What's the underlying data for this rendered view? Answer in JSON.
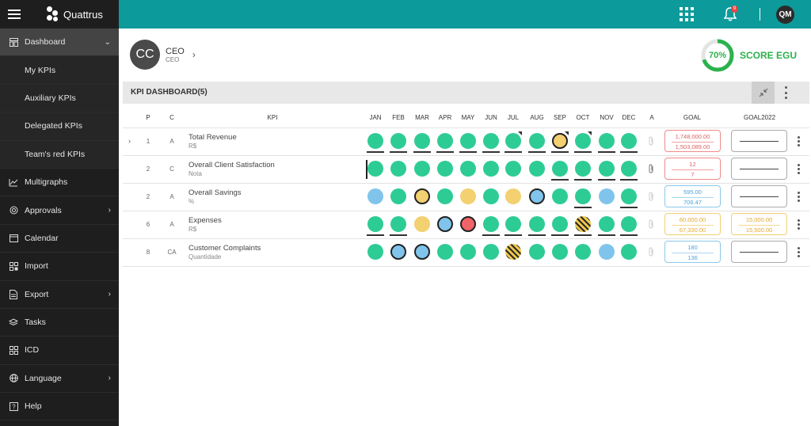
{
  "app": {
    "logo_text": "Quattrus"
  },
  "sidebar": {
    "items": [
      {
        "label": "Dashboard",
        "icon": "dashboard-icon",
        "active": true,
        "chevron": "⌄",
        "sub": false
      },
      {
        "label": "My KPIs",
        "sub": true
      },
      {
        "label": "Auxiliary KPIs",
        "sub": true
      },
      {
        "label": "Delegated KPIs",
        "sub": true
      },
      {
        "label": "Team's red KPIs",
        "sub": true
      },
      {
        "label": "Multigraphs",
        "icon": "chart-icon",
        "sub": false
      },
      {
        "label": "Approvals",
        "icon": "target-icon",
        "chevron": "›",
        "sub": false
      },
      {
        "label": "Calendar",
        "icon": "calendar-icon",
        "sub": false
      },
      {
        "label": "Import",
        "icon": "import-icon",
        "sub": false
      },
      {
        "label": "Export",
        "icon": "document-icon",
        "chevron": "›",
        "sub": false
      },
      {
        "label": "Tasks",
        "icon": "layers-icon",
        "sub": false
      },
      {
        "label": "ICD",
        "icon": "grid-icon",
        "sub": false
      },
      {
        "label": "Language",
        "icon": "globe-icon",
        "chevron": "›",
        "sub": false
      },
      {
        "label": "Help",
        "icon": "help-icon",
        "sub": false
      }
    ]
  },
  "topbar": {
    "notification_count": "9",
    "user_initials": "QM",
    "color": "#0d9a9a"
  },
  "profile": {
    "initials": "CC",
    "title": "CEO",
    "subtitle": "CEO"
  },
  "score": {
    "value": "70%",
    "fraction": 0.7,
    "label": "SCORE EGU"
  },
  "dashboard": {
    "title": "KPI DASHBOARD(5)"
  },
  "table": {
    "headers": {
      "p": "P",
      "c": "C",
      "kpi": "KPI",
      "a": "A",
      "goal": "GOAL",
      "goal2022": "GOAL2022"
    },
    "months": [
      "JAN",
      "FEB",
      "MAR",
      "APR",
      "MAY",
      "JUN",
      "JUL",
      "AUG",
      "SEP",
      "OCT",
      "NOV",
      "DEC"
    ],
    "rows": [
      {
        "p": "1",
        "c": "A",
        "name": "Total Revenue",
        "unit": "R$",
        "expandable": true,
        "status": [
          "green",
          "green",
          "green",
          "green",
          "green",
          "green",
          "green",
          "green",
          "yellow",
          "green",
          "green",
          "green"
        ],
        "ring": [
          false,
          false,
          false,
          false,
          false,
          false,
          false,
          false,
          true,
          false,
          false,
          false
        ],
        "underline": [
          true,
          true,
          true,
          true,
          true,
          true,
          true,
          true,
          true,
          true,
          true,
          true
        ],
        "corner": [
          false,
          false,
          false,
          false,
          false,
          false,
          true,
          false,
          true,
          true,
          false,
          false
        ],
        "goal": {
          "v1": "1,748,000.00",
          "v2": "1,503,089.00",
          "color": "red"
        },
        "goal2022": {
          "v1": "",
          "v2": "",
          "color": "grey"
        }
      },
      {
        "p": "2",
        "c": "C",
        "name": "Overall Client Satisfaction",
        "unit": "Nota",
        "expandable": false,
        "status": [
          "green",
          "green",
          "green",
          "green",
          "green",
          "green",
          "green",
          "green",
          "green",
          "green",
          "green",
          "green"
        ],
        "ring": [
          false,
          false,
          false,
          false,
          false,
          false,
          false,
          false,
          false,
          false,
          false,
          false
        ],
        "underline": [
          false,
          false,
          false,
          false,
          false,
          false,
          false,
          false,
          true,
          true,
          true,
          true
        ],
        "corner": [
          false,
          false,
          false,
          false,
          false,
          false,
          false,
          false,
          false,
          false,
          false,
          false
        ],
        "attachment": true,
        "goal": {
          "v1": "12",
          "v2": "7",
          "color": "red"
        },
        "goal2022": {
          "v1": "",
          "v2": "",
          "color": "grey"
        }
      },
      {
        "p": "2",
        "c": "A",
        "name": "Overall Savings",
        "unit": "%",
        "expandable": false,
        "status": [
          "blue",
          "green",
          "yellow",
          "green",
          "yellow",
          "green",
          "yellow",
          "blue",
          "green",
          "green",
          "blue",
          "green"
        ],
        "ring": [
          false,
          false,
          true,
          false,
          false,
          false,
          false,
          true,
          false,
          false,
          false,
          false
        ],
        "underline": [
          false,
          false,
          false,
          false,
          false,
          false,
          false,
          false,
          false,
          true,
          false,
          true
        ],
        "corner": [
          false,
          false,
          false,
          false,
          false,
          false,
          false,
          false,
          false,
          false,
          false,
          false
        ],
        "goal": {
          "v1": "595.00",
          "v2": "706.47",
          "color": "blue"
        },
        "goal2022": {
          "v1": "",
          "v2": "",
          "color": "grey"
        }
      },
      {
        "p": "6",
        "c": "A",
        "name": "Expenses",
        "unit": "R$",
        "expandable": false,
        "status": [
          "green",
          "green",
          "yellow",
          "blue",
          "red",
          "green",
          "green",
          "green",
          "green",
          "hatch",
          "green",
          "green"
        ],
        "ring": [
          false,
          false,
          false,
          true,
          true,
          false,
          false,
          false,
          false,
          false,
          false,
          false
        ],
        "underline": [
          true,
          true,
          false,
          false,
          false,
          true,
          true,
          true,
          true,
          true,
          true,
          true
        ],
        "corner": [
          false,
          false,
          false,
          false,
          false,
          false,
          false,
          false,
          false,
          false,
          false,
          false
        ],
        "goal": {
          "v1": "60,000.00",
          "v2": "67,330.00",
          "color": "yellow"
        },
        "goal2022": {
          "v1": "15,000.00",
          "v2": "15,500.00",
          "color": "yellow"
        }
      },
      {
        "p": "8",
        "c": "CA",
        "name": "Customer Complaints",
        "unit": "Quantidade",
        "expandable": false,
        "status": [
          "green",
          "blue",
          "blue",
          "green",
          "green",
          "green",
          "hatch",
          "green",
          "green",
          "green",
          "blue",
          "green"
        ],
        "ring": [
          false,
          true,
          true,
          false,
          false,
          false,
          false,
          false,
          false,
          false,
          false,
          false
        ],
        "underline": [
          false,
          false,
          false,
          false,
          false,
          false,
          false,
          false,
          false,
          false,
          false,
          false
        ],
        "corner": [
          false,
          false,
          false,
          false,
          false,
          false,
          false,
          false,
          false,
          false,
          false,
          false
        ],
        "goal": {
          "v1": "180",
          "v2": "136",
          "color": "blue"
        },
        "goal2022": {
          "v1": "",
          "v2": "",
          "color": "grey"
        }
      }
    ]
  }
}
